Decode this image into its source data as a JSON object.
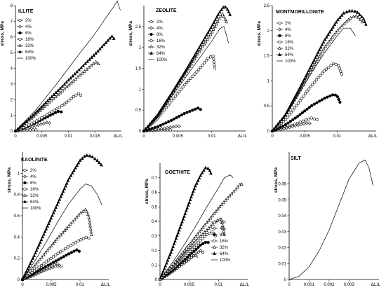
{
  "chart_data": [
    {
      "type": "line",
      "title": "ILLITE",
      "ylabel": "stress, MPa",
      "xlabel": "ΔL/L",
      "xlim": [
        0,
        0.02
      ],
      "ylim": [
        0,
        8
      ],
      "xticks": [
        0,
        0.005,
        0.01,
        0.015
      ],
      "xtick_labels": [
        "0",
        "0.005",
        "0.01",
        "0.015"
      ],
      "yticks": [
        0,
        1,
        2,
        3,
        4,
        5,
        6,
        7,
        8
      ],
      "ytick_labels": [
        "0",
        "1",
        "2",
        "3",
        "4",
        "5",
        "6",
        "7",
        "8"
      ],
      "legend_position": "top-left",
      "series": [
        {
          "name": "2%",
          "marker": "open-circle",
          "x": [
            0,
            0.001,
            0.002,
            0.003,
            0.004
          ],
          "y": [
            0,
            0.02,
            0.05,
            0.08,
            0.07
          ]
        },
        {
          "name": "4%",
          "marker": "open-diamond",
          "x": [
            0,
            0.002,
            0.004,
            0.006,
            0.0065
          ],
          "y": [
            0,
            0.15,
            0.35,
            0.55,
            0.5
          ]
        },
        {
          "name": "8%",
          "marker": "filled-circle",
          "x": [
            0,
            0.002,
            0.004,
            0.006,
            0.008,
            0.009
          ],
          "y": [
            0,
            0.25,
            0.55,
            0.9,
            1.25,
            1.2
          ]
        },
        {
          "name": "16%",
          "marker": "open-circle",
          "x": [
            0,
            0.003,
            0.006,
            0.009,
            0.011,
            0.012,
            0.0125
          ],
          "y": [
            0,
            0.45,
            1.05,
            1.65,
            2.2,
            2.4,
            2.2
          ]
        },
        {
          "name": "32%",
          "marker": "open-triangle",
          "x": [
            0,
            0.003,
            0.006,
            0.009,
            0.012,
            0.014,
            0.0152,
            0.016
          ],
          "y": [
            0,
            0.8,
            1.7,
            2.6,
            3.5,
            4.1,
            4.4,
            4.2
          ]
        },
        {
          "name": "64%",
          "marker": "filled-triangle",
          "x": [
            0,
            0.003,
            0.006,
            0.009,
            0.012,
            0.015,
            0.017,
            0.0182,
            0.0188
          ],
          "y": [
            0,
            0.9,
            1.9,
            2.9,
            3.9,
            4.9,
            5.6,
            6.05,
            5.8
          ]
        },
        {
          "name": "100%",
          "marker": "none",
          "x": [
            0,
            0.004,
            0.008,
            0.012,
            0.015,
            0.017,
            0.0185,
            0.0192,
            0.0198
          ],
          "y": [
            0,
            1.4,
            3.1,
            4.9,
            6.2,
            7.2,
            7.9,
            8.3,
            7.7
          ]
        }
      ]
    },
    {
      "type": "line",
      "title": "ZEOLITE",
      "ylabel": "stress, MPa",
      "xlabel": "ΔL/L",
      "xlim": [
        0,
        0.015
      ],
      "ylim": [
        0,
        3
      ],
      "xticks": [
        0,
        0.005,
        0.01
      ],
      "xtick_labels": [
        "0",
        "0.005",
        "0.01"
      ],
      "yticks": [
        0,
        0.5,
        1,
        1.5,
        2,
        2.5
      ],
      "ytick_labels": [
        "0",
        "0.5",
        "1",
        "1.5",
        "2",
        "2.5"
      ],
      "legend_position": "top-left",
      "series": [
        {
          "name": "2%",
          "marker": "open-circle",
          "x": [
            0,
            0.001,
            0.002,
            0.003,
            0.004
          ],
          "y": [
            0,
            0.01,
            0.02,
            0.03,
            0.025
          ]
        },
        {
          "name": "4%",
          "marker": "open-diamond",
          "x": [
            0,
            0.002,
            0.004,
            0.005,
            0.0055
          ],
          "y": [
            0,
            0.04,
            0.09,
            0.12,
            0.1
          ]
        },
        {
          "name": "8%",
          "marker": "filled-circle",
          "x": [
            0,
            0.002,
            0.004,
            0.006,
            0.008,
            0.0085
          ],
          "y": [
            0,
            0.1,
            0.25,
            0.42,
            0.55,
            0.5
          ]
        },
        {
          "name": "16%",
          "marker": "open-circle",
          "x": [
            0,
            0.002,
            0.004,
            0.006,
            0.008,
            0.0095,
            0.0102,
            0.0105
          ],
          "y": [
            0,
            0.3,
            0.7,
            1.1,
            1.45,
            1.75,
            1.8,
            1.45
          ]
        },
        {
          "name": "32%",
          "marker": "open-triangle",
          "x": [
            0,
            0.002,
            0.004,
            0.006,
            0.008,
            0.01,
            0.011,
            0.0116,
            0.0122
          ],
          "y": [
            0,
            0.35,
            0.85,
            1.35,
            1.85,
            2.35,
            2.65,
            2.8,
            2.6
          ]
        },
        {
          "name": "64%",
          "marker": "filled-triangle",
          "x": [
            0,
            0.002,
            0.004,
            0.006,
            0.008,
            0.01,
            0.011,
            0.0118,
            0.0122,
            0.0128
          ],
          "y": [
            0,
            0.38,
            0.88,
            1.4,
            1.95,
            2.5,
            2.8,
            2.98,
            2.95,
            2.75
          ]
        },
        {
          "name": "100%",
          "marker": "none",
          "x": [
            0,
            0.002,
            0.004,
            0.006,
            0.008,
            0.01,
            0.0112,
            0.0118,
            0.0125
          ],
          "y": [
            0,
            0.33,
            0.8,
            1.25,
            1.7,
            2.15,
            2.45,
            2.5,
            2.1
          ]
        }
      ]
    },
    {
      "type": "line",
      "title": "MONTMORILLONITE",
      "ylabel": "stress, MPa",
      "xlabel": "ΔL/L",
      "xlim": [
        0,
        0.016
      ],
      "ylim": [
        0,
        2.5
      ],
      "xticks": [
        0,
        0.005,
        0.01
      ],
      "xtick_labels": [
        "0",
        "0.005",
        "0.01"
      ],
      "yticks": [
        0,
        0.5,
        1,
        1.5,
        2,
        2.5
      ],
      "ytick_labels": [
        "0",
        "0.5",
        "1",
        "1.5",
        "2",
        "2.5"
      ],
      "legend_position": "top-left",
      "series": [
        {
          "name": "2%",
          "marker": "open-circle",
          "x": [
            0,
            0.002,
            0.004,
            0.006,
            0.007
          ],
          "y": [
            0,
            0.06,
            0.16,
            0.26,
            0.22
          ]
        },
        {
          "name": "4%",
          "marker": "open-diamond",
          "x": [
            0,
            0.002,
            0.004,
            0.0055,
            0.006
          ],
          "y": [
            0,
            0.05,
            0.12,
            0.16,
            0.14
          ]
        },
        {
          "name": "8%",
          "marker": "filled-circle",
          "x": [
            0,
            0.002,
            0.004,
            0.006,
            0.008,
            0.0095,
            0.01,
            0.0105
          ],
          "y": [
            0,
            0.12,
            0.3,
            0.5,
            0.65,
            0.73,
            0.7,
            0.55
          ]
        },
        {
          "name": "16%",
          "marker": "open-circle",
          "x": [
            0,
            0.002,
            0.004,
            0.006,
            0.008,
            0.0095,
            0.0102,
            0.0108
          ],
          "y": [
            0,
            0.22,
            0.55,
            0.9,
            1.2,
            1.35,
            1.3,
            1.1
          ]
        },
        {
          "name": "32%",
          "marker": "open-triangle",
          "x": [
            0,
            0.002,
            0.004,
            0.006,
            0.008,
            0.01,
            0.012,
            0.013,
            0.014
          ],
          "y": [
            0,
            0.3,
            0.75,
            1.2,
            1.65,
            2.0,
            2.25,
            2.3,
            2.15
          ]
        },
        {
          "name": "64%",
          "marker": "filled-triangle",
          "x": [
            0,
            0.002,
            0.004,
            0.006,
            0.008,
            0.01,
            0.011,
            0.012,
            0.013,
            0.014,
            0.0145
          ],
          "y": [
            0,
            0.32,
            0.8,
            1.3,
            1.8,
            2.2,
            2.35,
            2.4,
            2.38,
            2.25,
            2.1
          ]
        },
        {
          "name": "100%",
          "marker": "none",
          "x": [
            0,
            0.002,
            0.004,
            0.006,
            0.008,
            0.01,
            0.011,
            0.012,
            0.0128
          ],
          "y": [
            0,
            0.3,
            0.72,
            1.15,
            1.55,
            1.9,
            2.05,
            2.05,
            1.9
          ]
        }
      ]
    },
    {
      "type": "line",
      "title": "KAOLINITE",
      "ylabel": "stress, MPa",
      "xlabel": "ΔL/L",
      "xlim": [
        0,
        0.015
      ],
      "ylim": [
        0,
        1.2
      ],
      "xticks": [
        0,
        0.005,
        0.01
      ],
      "xtick_labels": [
        "0",
        "0.005",
        "0.01"
      ],
      "yticks": [
        0,
        0.2,
        0.4,
        0.6,
        0.8,
        1
      ],
      "ytick_labels": [
        "0",
        "0.2",
        "0.4",
        "0.6",
        "0.8",
        "1"
      ],
      "legend_position": "top-left",
      "series": [
        {
          "name": "2%",
          "marker": "open-circle",
          "x": [
            0,
            0.002,
            0.004,
            0.006,
            0.007
          ],
          "y": [
            0,
            0.04,
            0.09,
            0.13,
            0.12
          ]
        },
        {
          "name": "4%",
          "marker": "open-diamond",
          "x": [
            0,
            0.002,
            0.004,
            0.006,
            0.0065
          ],
          "y": [
            0,
            0.05,
            0.1,
            0.15,
            0.13
          ]
        },
        {
          "name": "8%",
          "marker": "filled-circle",
          "x": [
            0,
            0.002,
            0.004,
            0.006,
            0.008,
            0.0095,
            0.01
          ],
          "y": [
            0,
            0.06,
            0.12,
            0.18,
            0.24,
            0.28,
            0.26
          ]
        },
        {
          "name": "16%",
          "marker": "open-circle",
          "x": [
            0,
            0.002,
            0.004,
            0.006,
            0.008,
            0.01,
            0.0112,
            0.0118
          ],
          "y": [
            0,
            0.08,
            0.16,
            0.24,
            0.31,
            0.37,
            0.4,
            0.38
          ]
        },
        {
          "name": "32%",
          "marker": "open-triangle",
          "x": [
            0,
            0.002,
            0.004,
            0.006,
            0.008,
            0.01,
            0.011,
            0.0115,
            0.012
          ],
          "y": [
            0,
            0.12,
            0.25,
            0.38,
            0.5,
            0.62,
            0.66,
            0.6,
            0.42
          ]
        },
        {
          "name": "64%",
          "marker": "filled-triangle",
          "x": [
            0,
            0.002,
            0.004,
            0.006,
            0.008,
            0.01,
            0.011,
            0.012,
            0.013,
            0.014
          ],
          "y": [
            0,
            0.22,
            0.46,
            0.7,
            0.94,
            1.12,
            1.17,
            1.16,
            1.12,
            1.06
          ]
        },
        {
          "name": "100%",
          "marker": "none",
          "x": [
            0,
            0.002,
            0.004,
            0.006,
            0.008,
            0.01,
            0.011,
            0.012,
            0.013,
            0.0138
          ],
          "y": [
            0,
            0.16,
            0.34,
            0.53,
            0.71,
            0.85,
            0.9,
            0.88,
            0.8,
            0.7
          ]
        }
      ]
    },
    {
      "type": "line",
      "title": "GOETHITE",
      "ylabel": "stress, MPa",
      "xlabel": "ΔL/L",
      "xlim": [
        0,
        0.015
      ],
      "ylim": [
        0,
        0.8
      ],
      "xticks": [
        0,
        0.005,
        0.01
      ],
      "xtick_labels": [
        "0",
        "0.005",
        "0.01"
      ],
      "yticks": [
        0,
        0.1,
        0.2,
        0.3,
        0.4,
        0.5,
        0.6,
        0.7
      ],
      "ytick_labels": [
        "0",
        "0.1",
        "0.2",
        "0.3",
        "0.4",
        "0.5",
        "0.6",
        "0.7"
      ],
      "legend_position": "bottom-right",
      "series": [
        {
          "name": "2%",
          "marker": "open-circle",
          "x": [
            0,
            0.002,
            0.004,
            0.006,
            0.0065
          ],
          "y": [
            0,
            0.05,
            0.11,
            0.17,
            0.15
          ]
        },
        {
          "name": "4%",
          "marker": "open-diamond",
          "x": [
            0,
            0.002,
            0.004,
            0.006,
            0.007,
            0.0075
          ],
          "y": [
            0,
            0.05,
            0.11,
            0.17,
            0.2,
            0.18
          ]
        },
        {
          "name": "8%",
          "marker": "filled-circle",
          "x": [
            0,
            0.002,
            0.004,
            0.006,
            0.007,
            0.008,
            0.0085
          ],
          "y": [
            0,
            0.06,
            0.13,
            0.2,
            0.24,
            0.26,
            0.25
          ]
        },
        {
          "name": "16%",
          "marker": "open-circle",
          "x": [
            0,
            0.002,
            0.004,
            0.006,
            0.008,
            0.009,
            0.0095
          ],
          "y": [
            0,
            0.07,
            0.15,
            0.23,
            0.31,
            0.33,
            0.3
          ]
        },
        {
          "name": "32%",
          "marker": "open-triangle",
          "x": [
            0,
            0.002,
            0.004,
            0.006,
            0.008,
            0.0095,
            0.0105,
            0.011
          ],
          "y": [
            0,
            0.08,
            0.17,
            0.26,
            0.34,
            0.4,
            0.42,
            0.3
          ]
        },
        {
          "name": "64%",
          "marker": "filled-triangle",
          "x": [
            0,
            0.001,
            0.002,
            0.003,
            0.004,
            0.005,
            0.006,
            0.007,
            0.0078,
            0.0084,
            0.0088
          ],
          "y": [
            0,
            0.1,
            0.2,
            0.31,
            0.42,
            0.53,
            0.64,
            0.72,
            0.77,
            0.76,
            0.72
          ]
        },
        {
          "name": "100%",
          "marker": "none",
          "x": [
            0,
            0.002,
            0.004,
            0.006,
            0.008,
            0.01,
            0.011,
            0.012,
            0.0125
          ],
          "y": [
            0,
            0.11,
            0.23,
            0.36,
            0.5,
            0.63,
            0.7,
            0.72,
            0.7
          ]
        },
        {
          "name": "",
          "marker": "open-triangle",
          "x": [
            0,
            0.002,
            0.004,
            0.006,
            0.008,
            0.01,
            0.012,
            0.013,
            0.0138,
            0.0142
          ],
          "y": [
            0,
            0.09,
            0.19,
            0.29,
            0.39,
            0.49,
            0.58,
            0.62,
            0.66,
            0.65
          ]
        }
      ]
    },
    {
      "type": "line",
      "title": "SILT",
      "ylabel": "stress, MPa",
      "xlabel": "ΔL/L",
      "xlim": [
        0,
        0.0045
      ],
      "ylim": [
        0,
        0.08
      ],
      "xticks": [
        0,
        0.001,
        0.002,
        0.003
      ],
      "xtick_labels": [
        "0",
        "0.001",
        "0.002",
        "0.003"
      ],
      "yticks": [
        0,
        0.01,
        0.02,
        0.03,
        0.04,
        0.05,
        0.06
      ],
      "ytick_labels": [
        "0",
        "0.01",
        "0.02",
        "0.03",
        "0.04",
        "0.05",
        "0.06"
      ],
      "legend_position": "none",
      "series": [
        {
          "name": "",
          "marker": "none",
          "x": [
            0,
            0.0005,
            0.001,
            0.0015,
            0.002,
            0.0025,
            0.003,
            0.0035,
            0.0038,
            0.004,
            0.0042
          ],
          "y": [
            0,
            0.002,
            0.008,
            0.018,
            0.031,
            0.047,
            0.063,
            0.073,
            0.075,
            0.07,
            0.059
          ]
        }
      ]
    }
  ]
}
